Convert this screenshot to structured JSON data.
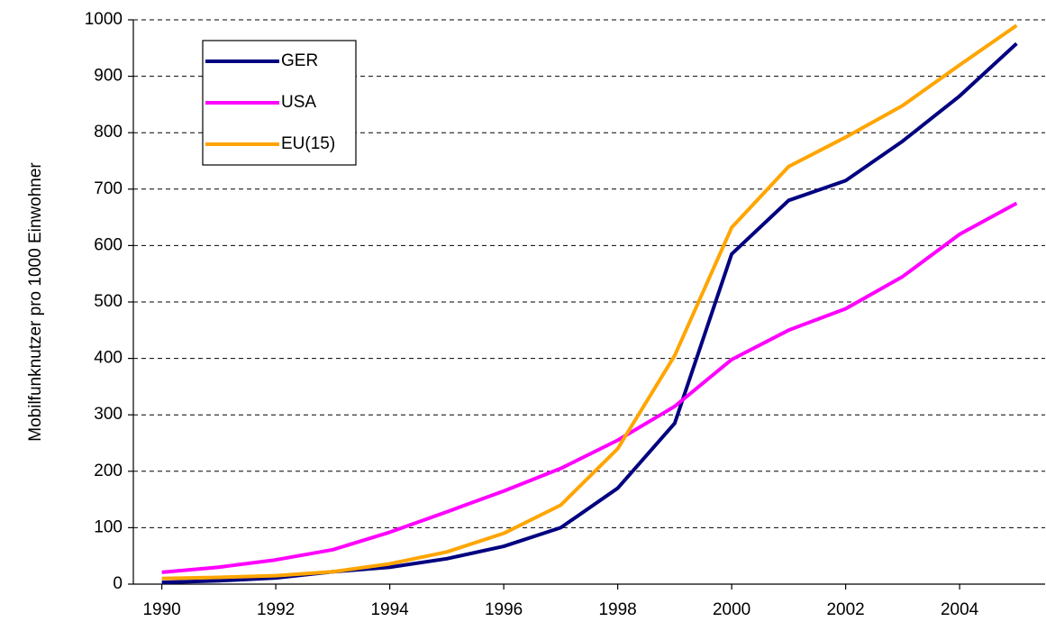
{
  "chart_data": {
    "type": "line",
    "y_label": "Mobilfunknutzer pro 1000 Einwohner",
    "x": [
      1990,
      1991,
      1992,
      1993,
      1994,
      1995,
      1996,
      1997,
      1998,
      1999,
      2000,
      2001,
      2002,
      2003,
      2004,
      2005
    ],
    "series": [
      {
        "name": "GER",
        "color": "#000080",
        "values": [
          3,
          6,
          11,
          22,
          30,
          45,
          67,
          100,
          170,
          285,
          585,
          680,
          715,
          785,
          865,
          958
        ]
      },
      {
        "name": "USA",
        "color": "#ff00ff",
        "values": [
          21,
          30,
          43,
          61,
          92,
          128,
          165,
          205,
          255,
          315,
          398,
          450,
          488,
          545,
          620,
          675
        ]
      },
      {
        "name": "EU(15)",
        "color": "#ffa500",
        "values": [
          10,
          12,
          15,
          22,
          36,
          57,
          90,
          140,
          240,
          405,
          632,
          740,
          792,
          848,
          920,
          990
        ]
      }
    ],
    "xlim": [
      1989.5,
      2005.5
    ],
    "xticks": [
      1990,
      1992,
      1994,
      1996,
      1998,
      2000,
      2002,
      2004
    ],
    "ylim": [
      0,
      1000
    ],
    "yticks": [
      0,
      100,
      200,
      300,
      400,
      500,
      600,
      700,
      800,
      900,
      1000
    ],
    "grid": true,
    "legend": "upper-left"
  }
}
